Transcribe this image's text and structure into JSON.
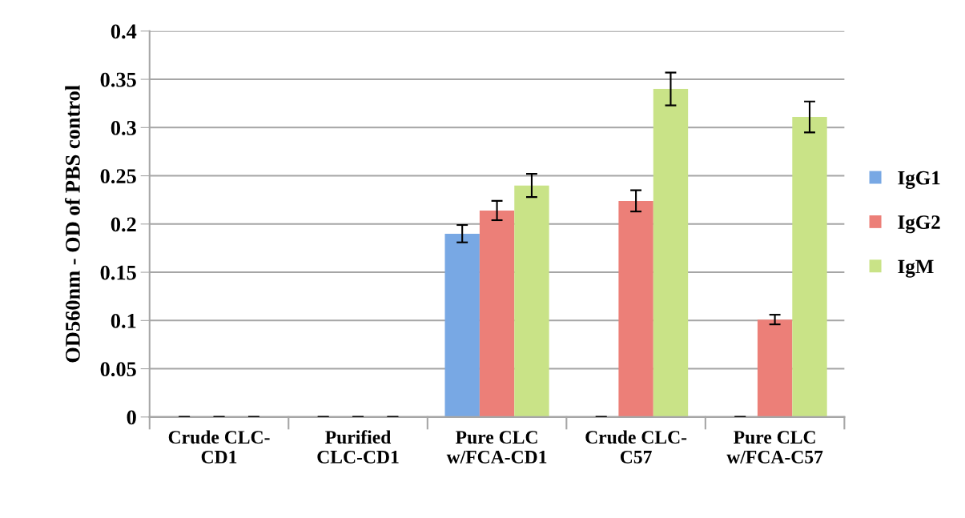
{
  "chart_data": {
    "type": "bar",
    "ylabel": "OD560nm - OD of PBS control",
    "categories": [
      "Crude CLC-\nCD1",
      "Purified\nCLC-CD1",
      "Pure CLC\nw/FCA-CD1",
      "Crude CLC-\nC57",
      "Pure CLC\nw/FCA-C57"
    ],
    "series": [
      {
        "name": "IgG1",
        "color": "#78a8e4",
        "values": [
          0,
          0,
          0.19,
          0,
          0
        ],
        "errors": [
          0,
          0,
          0.009,
          0,
          0
        ]
      },
      {
        "name": "IgG2",
        "color": "#ec7f78",
        "values": [
          0,
          0,
          0.214,
          0.224,
          0.101
        ],
        "errors": [
          0,
          0,
          0.01,
          0.011,
          0.005
        ]
      },
      {
        "name": "IgM",
        "color": "#c9e387",
        "values": [
          0,
          0,
          0.24,
          0.34,
          0.311
        ],
        "errors": [
          0,
          0,
          0.012,
          0.017,
          0.016
        ]
      }
    ],
    "ylim": [
      0,
      0.4
    ],
    "yticks": [
      0,
      0.05,
      0.1,
      0.15,
      0.2,
      0.25,
      0.3,
      0.35,
      0.4
    ],
    "grid": "y",
    "legend": "right"
  }
}
